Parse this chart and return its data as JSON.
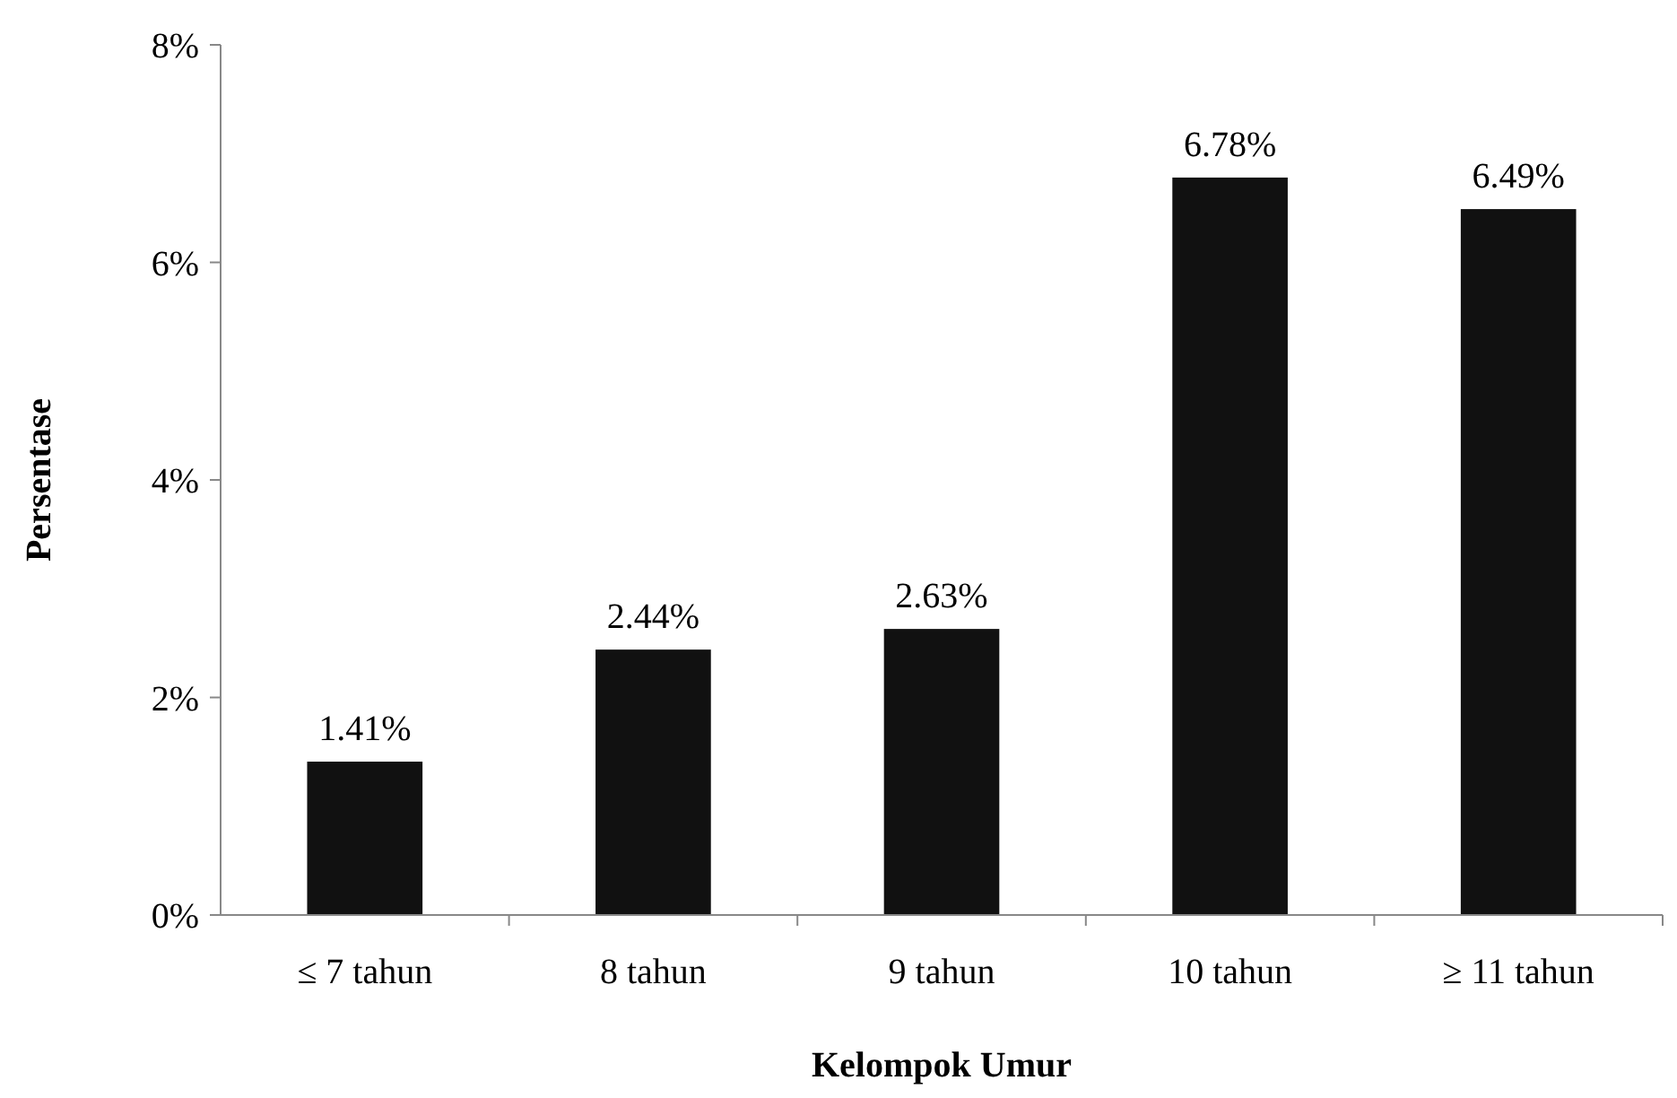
{
  "chart_data": {
    "type": "bar",
    "xlabel": "Kelompok Umur",
    "ylabel": "Persentase",
    "categories": [
      "≤ 7 tahun",
      "8 tahun",
      "9 tahun",
      "10 tahun",
      "≥ 11 tahun"
    ],
    "values": [
      1.41,
      2.44,
      2.63,
      6.78,
      6.49
    ],
    "color": "#111111",
    "value_labels": [
      "1.41%",
      "2.44%",
      "2.63%",
      "6.78%",
      "6.49%"
    ],
    "ylim": [
      0,
      8
    ],
    "yticks": [
      {
        "value": 0,
        "label": "0%"
      },
      {
        "value": 2,
        "label": "2%"
      },
      {
        "value": 4,
        "label": "4%"
      },
      {
        "value": 6,
        "label": "6%"
      },
      {
        "value": 8,
        "label": "8%"
      }
    ],
    "grid": false
  }
}
